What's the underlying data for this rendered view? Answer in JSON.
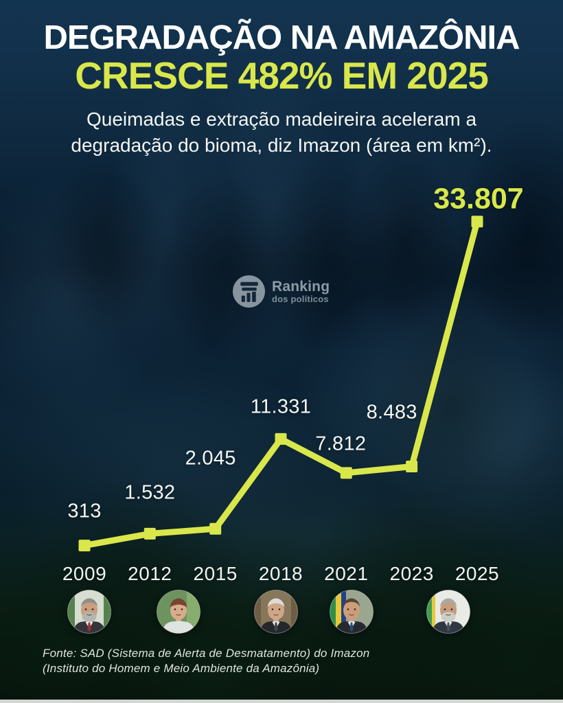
{
  "poster": {
    "title_line1": "DEGRADAÇÃO NA AMAZÔNIA",
    "title_line2": "CRESCE 482% EM 2025",
    "subtitle_line1": "Queimadas e extração madeireira aceleram a",
    "subtitle_line2": "degradação do bioma, diz Imazon (área em km²).",
    "accent_color": "#d9e74b",
    "background_navy": "#12304a"
  },
  "watermark": {
    "brand": "Ranking",
    "brand_sub": "dos políticos",
    "icon": "bar-chart-podium-icon",
    "icon_circle_color": "#c3cdd3",
    "icon_glyph_color": "#152a3c"
  },
  "chart_data": {
    "type": "line",
    "title": "Degradação na Amazônia cresce 482% em 2025 (área em km²)",
    "xlabel": "",
    "ylabel": "área em km²",
    "x": [
      "2009",
      "2012",
      "2015",
      "2018",
      "2021",
      "2023",
      "2025"
    ],
    "values": [
      313,
      1532,
      2045,
      11331,
      7812,
      8483,
      33807
    ],
    "value_labels": [
      "313",
      "1.532",
      "2.045",
      "11.331",
      "7.812",
      "8.483",
      "33.807"
    ],
    "highlight_index": 6,
    "ylim": [
      0,
      34000
    ],
    "grid": false,
    "legend": false,
    "marker": "square",
    "line_color": "#d9e74b",
    "value_label_color": "#f6f8f4",
    "highlight_label_color": "#d9e74b"
  },
  "presidents": [
    {
      "name": "Lula",
      "slug": "lula-2009",
      "colors": {
        "bg": "#d7ddd0",
        "stripes": [
          [
            "#55824f",
            0,
            11
          ],
          [
            "#55824f",
            53,
            64
          ]
        ],
        "skin": "#c99f80",
        "hair": "#8e8e8a",
        "beard": "#b5b5ae",
        "suit": "#32363b",
        "shirt": "#ebebe8",
        "tie": "#a62b35",
        "fringe": 20
      }
    },
    {
      "name": "Dilma Rousseff",
      "slug": "dilma",
      "colors": {
        "bg": "#6d9460",
        "stripes": [
          [
            "#87ad6f",
            44,
            64
          ]
        ],
        "skin": "#d9ab8d",
        "hair": "#77452f",
        "beard": null,
        "suit": "#e0e4e0",
        "shirt": null,
        "tie": null,
        "fringe": 23
      }
    },
    {
      "name": "Michel Temer",
      "slug": "temer",
      "colors": {
        "bg": "#86765a",
        "stripes": [
          [
            "#6e5d45",
            0,
            10
          ],
          [
            "#6e5d45",
            54,
            64
          ]
        ],
        "skin": "#cfa687",
        "hair": "#dcdcd8",
        "beard": null,
        "suit": "#24272c",
        "shirt": "#eae9e6",
        "tie": "#41464e",
        "fringe": 21
      }
    },
    {
      "name": "Jair Bolsonaro",
      "slug": "bolsonaro",
      "colors": {
        "bg": "#9aa690",
        "stripes": [
          [
            "#2f8f4a",
            0,
            9
          ],
          [
            "#e8c838",
            9,
            17
          ],
          [
            "#20418c",
            17,
            24
          ]
        ],
        "skin": "#cb9d79",
        "hair": "#57452e",
        "beard": null,
        "suit": "#26292e",
        "shirt": "#eae9e6",
        "tie": "#2b4a78",
        "fringe": 19
      }
    },
    {
      "name": "Lula",
      "slug": "lula-2025",
      "colors": {
        "bg": "#e8ebe6",
        "stripes": [
          [
            "#3f9e52",
            0,
            8
          ],
          [
            "#e5c93c",
            8,
            13
          ]
        ],
        "skin": "#c79d7f",
        "hair": "#a9a9a5",
        "beard": "#cccdc7",
        "suit": "#2f3741",
        "shirt": "#eae9e6",
        "tie": "#45505c",
        "fringe": 20
      }
    }
  ],
  "footer": {
    "line1": "Fonte: SAD (Sistema de Alerta de Desmatamento) do Imazon",
    "line2": "(Instituto do Homem e Meio Ambiente da Amazônia)"
  }
}
